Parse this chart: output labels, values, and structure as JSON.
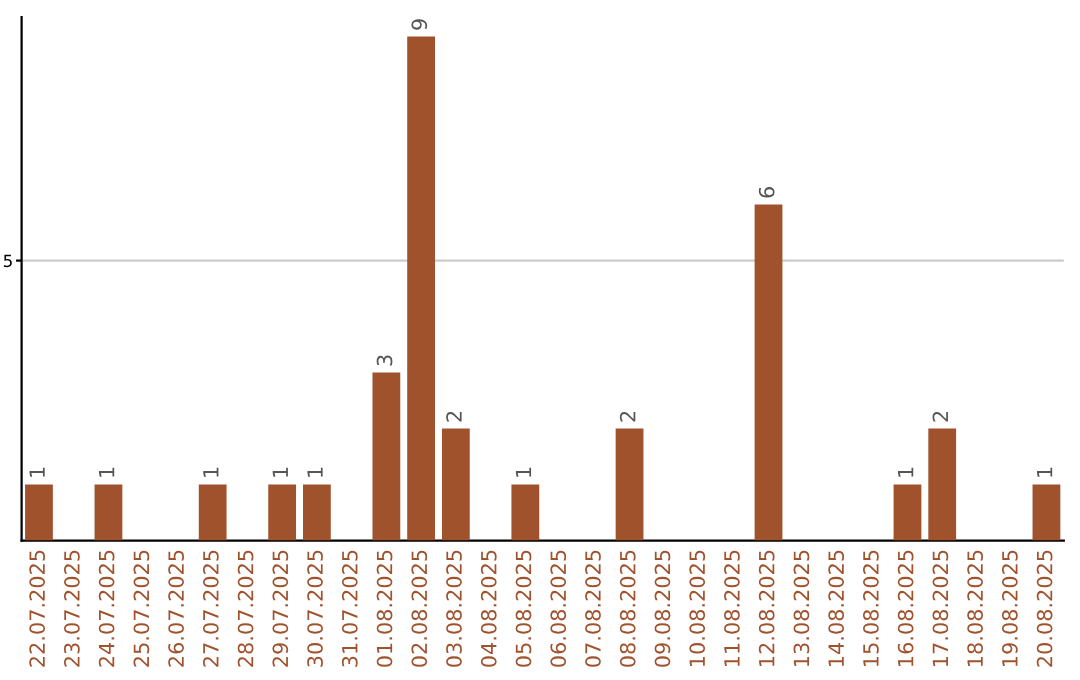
{
  "chart_data": {
    "type": "bar",
    "categories": [
      "22.07.2025",
      "23.07.2025",
      "24.07.2025",
      "25.07.2025",
      "26.07.2025",
      "27.07.2025",
      "28.07.2025",
      "29.07.2025",
      "30.07.2025",
      "31.07.2025",
      "01.08.2025",
      "02.08.2025",
      "03.08.2025",
      "04.08.2025",
      "05.08.2025",
      "06.08.2025",
      "07.08.2025",
      "08.08.2025",
      "09.08.2025",
      "10.08.2025",
      "11.08.2025",
      "12.08.2025",
      "13.08.2025",
      "14.08.2025",
      "15.08.2025",
      "16.08.2025",
      "17.08.2025",
      "18.08.2025",
      "19.08.2025",
      "20.08.2025"
    ],
    "values": [
      1,
      0,
      1,
      0,
      0,
      1,
      0,
      1,
      1,
      0,
      3,
      9,
      2,
      0,
      1,
      0,
      0,
      2,
      0,
      0,
      0,
      6,
      0,
      0,
      0,
      1,
      2,
      0,
      0,
      1
    ],
    "value_labels": [
      "1",
      null,
      "1",
      null,
      null,
      "1",
      null,
      "1",
      "1",
      null,
      "3",
      "9",
      "2",
      null,
      "1",
      null,
      null,
      "2",
      null,
      null,
      null,
      "6",
      null,
      null,
      null,
      "1",
      "2",
      null,
      null,
      "1"
    ],
    "color": "#a0522d",
    "ylim": [
      0,
      9.35
    ],
    "yticks": [
      5
    ],
    "grid": "y"
  }
}
